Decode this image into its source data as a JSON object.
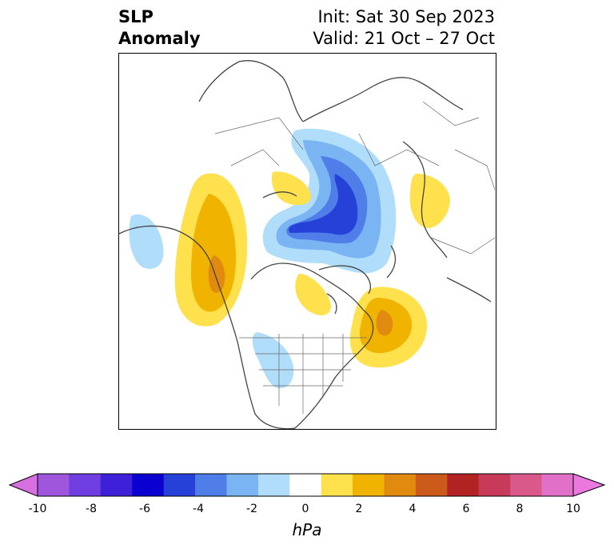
{
  "title": {
    "variable_line1": "SLP",
    "variable_line2": "Anomaly",
    "init": "Init: Sat 30 Sep 2023",
    "valid": "Valid: 21 Oct – 27 Oct"
  },
  "map": {
    "projection": "polar stereographic (North America / Arctic)",
    "features": [
      "coastlines",
      "country borders",
      "state/province borders"
    ]
  },
  "colorbar": {
    "unit": "hPa",
    "ticks": [
      "-10",
      "-8",
      "-6",
      "-4",
      "-2",
      "0",
      "2",
      "4",
      "6",
      "8",
      "10"
    ],
    "extend": "both",
    "colors": [
      "#d86fe0",
      "#a055dd",
      "#6e3ee0",
      "#3d20d8",
      "#0a00d0",
      "#2541d8",
      "#4f7ee8",
      "#7ab4f2",
      "#b0ddfa",
      "#ffffff",
      "#ffe14d",
      "#f0b400",
      "#e08a10",
      "#cc5a1a",
      "#b32222",
      "#c83a5a",
      "#d95a8a",
      "#e070c8",
      "#ea78de"
    ]
  }
}
